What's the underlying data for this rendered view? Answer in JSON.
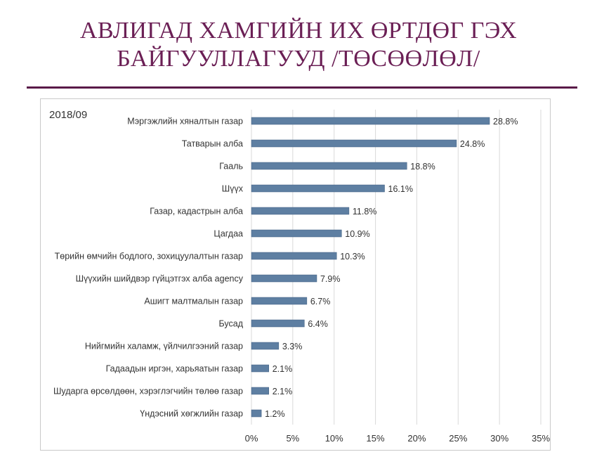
{
  "title": {
    "line1": "АВЛИГАД ХАМГИЙН ИХ ӨРТДӨГ ГЭХ",
    "line2": "БАЙГУУЛЛАГУУД /ТӨСӨӨЛӨЛ/"
  },
  "period": "2018/09",
  "colors": {
    "bar": "#5e7fa2",
    "bar_edge": "#3f5f80",
    "grid": "#d9d9d9",
    "title": "#6b1f55"
  },
  "chart_data": {
    "type": "bar",
    "orientation": "horizontal",
    "categories": [
      "Мэргэжлийн хяналтын газар",
      "Татварын алба",
      "Гааль",
      "Шүүх",
      "Газар, кадастрын алба",
      "Цагдаа",
      "Төрийн өмчийн бодлого, зохицуулалтын газар",
      "Шүүхийн шийдвэр гүйцэтгэх алба agency",
      "Ашигт малтмалын газар",
      "Бусад",
      "Нийгмийн халамж, үйлчилгээний газар",
      "Гадаадын иргэн, харьяатын газар",
      "Шударга өрсөлдөөн, хэрэглэгчийн төлөө газар",
      "Үндэсний хөгжлийн газар"
    ],
    "values": [
      28.8,
      24.8,
      18.8,
      16.1,
      11.8,
      10.9,
      10.3,
      7.9,
      6.7,
      6.4,
      3.3,
      2.1,
      2.1,
      1.2
    ],
    "value_labels": [
      "28.8%",
      "24.8%",
      "18.8%",
      "16.1%",
      "11.8%",
      "10.9%",
      "10.3%",
      "7.9%",
      "6.7%",
      "6.4%",
      "3.3%",
      "2.1%",
      "2.1%",
      "1.2%"
    ],
    "xlim": [
      0,
      35
    ],
    "xticks": [
      0,
      5,
      10,
      15,
      20,
      25,
      30,
      35
    ],
    "xtick_labels": [
      "0%",
      "5%",
      "10%",
      "15%",
      "20%",
      "25%",
      "30%",
      "35%"
    ],
    "grid": true,
    "legend": "none"
  }
}
